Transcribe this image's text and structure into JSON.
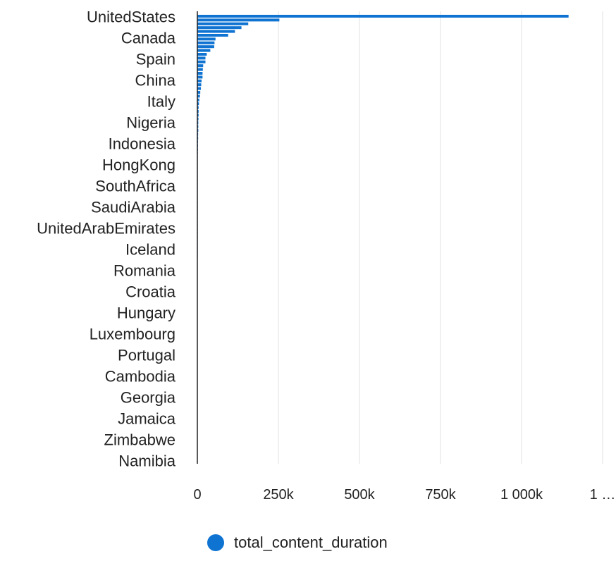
{
  "chart_data": {
    "type": "bar",
    "orientation": "horizontal",
    "labeled_categories": [
      "UnitedStates",
      "Canada",
      "Spain",
      "China",
      "Italy",
      "Nigeria",
      "Indonesia",
      "HongKong",
      "SouthAfrica",
      "SaudiArabia",
      "UnitedArabEmirates",
      "Iceland",
      "Romania",
      "Croatia",
      "Hungary",
      "Luxembourg",
      "Portugal",
      "Cambodia",
      "Georgia",
      "Jamaica",
      "Zimbabwe",
      "Namibia"
    ],
    "series": [
      {
        "name": "total_content_duration",
        "values": [
          1145000,
          253000,
          157000,
          136000,
          116000,
          95000,
          56000,
          53000,
          52000,
          40000,
          29000,
          25000,
          25000,
          18000,
          17000,
          16000,
          16000,
          13000,
          12000,
          11000,
          9000,
          8000,
          6000,
          5000,
          4000,
          4000,
          4000,
          3500,
          3000,
          3000,
          3000,
          2500,
          2500,
          2000,
          2000,
          1800,
          1500,
          1200,
          1000,
          900,
          800,
          700,
          600,
          500,
          450,
          400,
          350,
          300,
          250,
          200,
          180,
          160,
          140,
          120,
          100,
          90,
          80,
          70,
          60,
          50,
          45,
          40,
          35,
          30
        ]
      }
    ],
    "xlim": [
      0,
      1250000
    ],
    "x_ticks": [
      "0",
      "250k",
      "500k",
      "750k",
      "1 000k",
      "1 …"
    ],
    "xlabel": "",
    "ylabel": "",
    "title": "",
    "grid": true,
    "legend_position": "bottom",
    "colors": {
      "bar": "#0f73d2",
      "grid": "#e0e0e0",
      "axis": "#222222"
    }
  },
  "legend": {
    "label": "total_content_duration",
    "color": "#0f73d2"
  }
}
